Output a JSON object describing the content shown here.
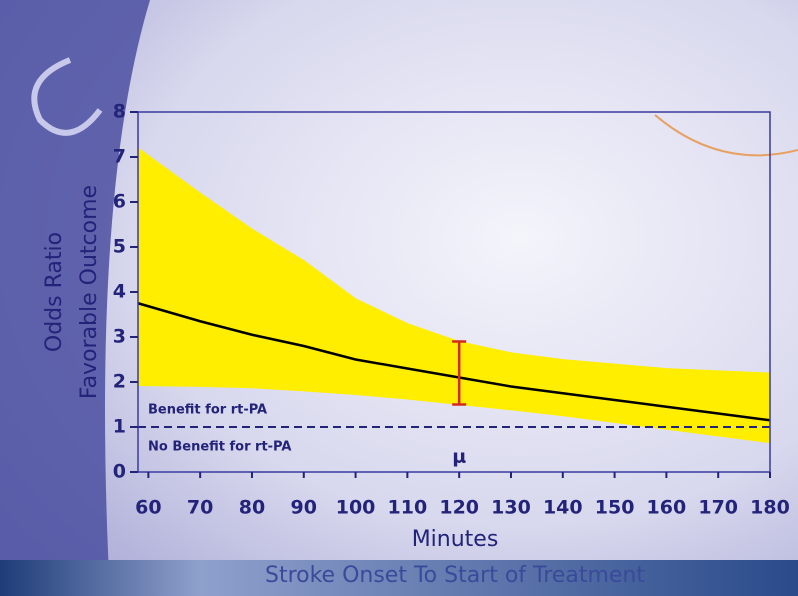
{
  "chart_data": {
    "type": "line",
    "y_label_lines": [
      "Odds Ratio",
      "Favorable Outcome"
    ],
    "x_label": "Minutes",
    "footer": "Stroke Onset To Start of Treatment",
    "annotations": [
      "Benefit for rt-PA",
      "No Benefit for rt-PA",
      "μ"
    ],
    "x": [
      58,
      70,
      80,
      90,
      100,
      110,
      120,
      130,
      140,
      150,
      160,
      170,
      180
    ],
    "series": [
      {
        "color": "#000000",
        "values": [
          3.75,
          3.35,
          3.05,
          2.8,
          2.5,
          2.3,
          2.1,
          1.9,
          1.75,
          1.6,
          1.45,
          1.3,
          1.15
        ]
      }
    ],
    "band": {
      "color": "#ffee00",
      "upper": [
        7.2,
        6.2,
        5.4,
        4.7,
        3.85,
        3.3,
        2.9,
        2.65,
        2.5,
        2.4,
        2.3,
        2.25,
        2.2
      ],
      "lower": [
        1.92,
        1.9,
        1.87,
        1.8,
        1.72,
        1.62,
        1.5,
        1.38,
        1.25,
        1.1,
        0.95,
        0.8,
        0.65
      ]
    },
    "errorbar": {
      "x": 120,
      "low": 1.5,
      "high": 2.9,
      "color": "#d42a1e"
    },
    "reference_line": 1,
    "xlim": [
      58,
      180
    ],
    "ylim": [
      0,
      8
    ],
    "xticks": [
      60,
      70,
      80,
      90,
      100,
      110,
      120,
      130,
      140,
      150,
      160,
      170,
      180
    ],
    "yticks": [
      0,
      1,
      2,
      3,
      4,
      5,
      6,
      7,
      8
    ]
  }
}
